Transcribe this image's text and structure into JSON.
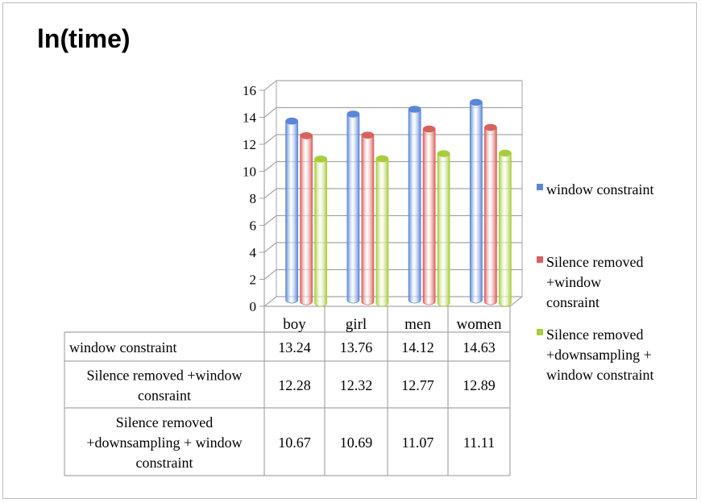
{
  "chart_data": {
    "type": "bar",
    "title": "ln(time)",
    "categories": [
      "boy",
      "girl",
      "men",
      "women"
    ],
    "ylim": [
      0,
      16
    ],
    "yticks": [
      "0",
      "2",
      "4",
      "6",
      "8",
      "10",
      "12",
      "14",
      "16"
    ],
    "grid": true,
    "legend_position": "right",
    "data_table": true,
    "series": [
      {
        "name": "window constraint",
        "table_label_lines": [
          "window constraint"
        ],
        "legend_lines": [
          "window constraint"
        ],
        "color": "#5a86d8",
        "values": [
          13.24,
          13.76,
          14.12,
          14.63
        ],
        "value_labels": [
          "13.24",
          "13.76",
          "14.12",
          "14.63"
        ]
      },
      {
        "name": "Silence removed +window consraint",
        "table_label_lines": [
          "Silence removed +window",
          "consraint"
        ],
        "legend_lines": [
          "Silence removed",
          "+window",
          "consraint"
        ],
        "color": "#d9615c",
        "values": [
          12.28,
          12.32,
          12.77,
          12.89
        ],
        "value_labels": [
          "12.28",
          "12.32",
          "12.77",
          "12.89"
        ]
      },
      {
        "name": "Silence removed +downsampling + window constraint",
        "table_label_lines": [
          "Silence removed",
          "+downsampling + window",
          "constraint"
        ],
        "legend_lines": [
          "Silence removed",
          "+downsampling +",
          "window constraint"
        ],
        "color": "#a8cd3c",
        "values": [
          10.67,
          10.69,
          11.07,
          11.11
        ],
        "value_labels": [
          "10.67",
          "10.69",
          "11.07",
          "11.11"
        ]
      }
    ]
  }
}
